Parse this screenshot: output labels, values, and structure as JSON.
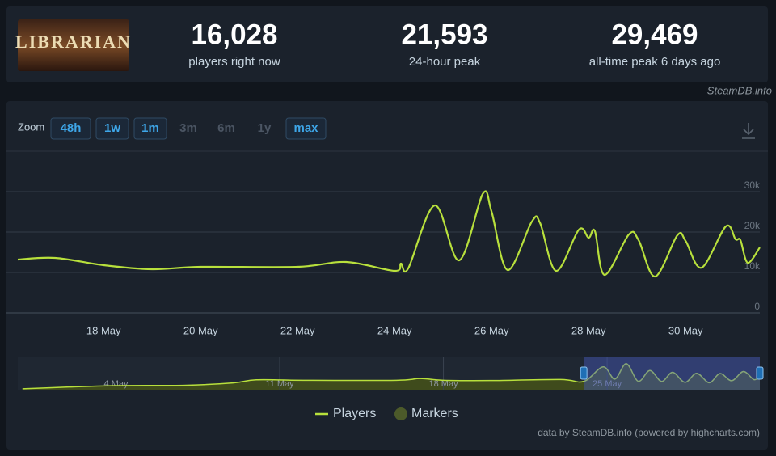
{
  "header": {
    "logo_text": "LIBRARIAN",
    "stats": [
      {
        "value": "16,028",
        "label": "players right now"
      },
      {
        "value": "21,593",
        "label": "24-hour peak"
      },
      {
        "value": "29,469",
        "label": "all-time peak 6 days ago"
      }
    ],
    "source": "SteamDB.info"
  },
  "zoom": {
    "label": "Zoom",
    "buttons": [
      {
        "label": "48h",
        "enabled": true
      },
      {
        "label": "1w",
        "enabled": true
      },
      {
        "label": "1m",
        "enabled": true
      },
      {
        "label": "3m",
        "enabled": false
      },
      {
        "label": "6m",
        "enabled": false
      },
      {
        "label": "1y",
        "enabled": false
      },
      {
        "label": "max",
        "enabled": true
      }
    ]
  },
  "chart_data": [
    {
      "type": "line",
      "x": [
        16.23,
        17.0,
        18.0,
        19.0,
        20.0,
        22.0,
        23.0,
        24.0,
        24.13,
        24.28,
        24.83,
        25.33,
        25.82,
        26.0,
        26.33,
        26.83,
        27.0,
        27.33,
        27.8,
        28.0,
        28.13,
        28.33,
        28.83,
        29.03,
        29.37,
        29.83,
        30.0,
        30.33,
        30.83,
        31.03,
        31.13,
        31.28,
        31.53
      ],
      "series": [
        {
          "name": "Players",
          "color": "#b8e03c",
          "values": [
            13200,
            13600,
            11800,
            10800,
            11400,
            11400,
            12600,
            10400,
            12200,
            11000,
            26600,
            13000,
            29500,
            25000,
            10600,
            22600,
            22200,
            10400,
            20600,
            18600,
            20200,
            9400,
            19400,
            18000,
            9000,
            19200,
            17800,
            11200,
            21400,
            18200,
            18000,
            12400,
            16200
          ]
        }
      ],
      "markers": {
        "name": "Markers",
        "color": "#4c5a2a"
      },
      "xlim": [
        16.23,
        31.53
      ],
      "xticks": [
        {
          "value": 18,
          "label": "18 May"
        },
        {
          "value": 20,
          "label": "20 May"
        },
        {
          "value": 22,
          "label": "22 May"
        },
        {
          "value": 24,
          "label": "24 May"
        },
        {
          "value": 26,
          "label": "26 May"
        },
        {
          "value": 28,
          "label": "28 May"
        },
        {
          "value": 30,
          "label": "30 May"
        }
      ],
      "ylim": [
        0,
        40000
      ],
      "yticks": [
        0,
        {
          "value": 10000,
          "label": "10k"
        },
        {
          "value": 20000,
          "label": "20k"
        },
        {
          "value": 30000,
          "label": "30k"
        }
      ],
      "grid": true
    },
    {
      "type": "navigator",
      "x": [
        0.0,
        2.0,
        4.0,
        7.0,
        9.0,
        10.0,
        12.0,
        16.0,
        17.0,
        18.0,
        20.0,
        23.0,
        24.0,
        24.83,
        25.33,
        25.82,
        26.33,
        26.83,
        27.33,
        27.8,
        28.33,
        28.83,
        29.37,
        29.83,
        30.33,
        30.83,
        31.28,
        31.53
      ],
      "values": [
        1000,
        3000,
        4500,
        5000,
        7500,
        11000,
        10500,
        10500,
        12500,
        10500,
        10200,
        11400,
        9200,
        25400,
        11800,
        29000,
        9400,
        21400,
        9200,
        19400,
        8200,
        18200,
        7800,
        18000,
        10000,
        20200,
        11200,
        15000
      ],
      "color": "#b8e03c",
      "area_color": "#3f4b1c",
      "xlim": [
        -0.2,
        31.53
      ],
      "xticks": [
        {
          "value": 4,
          "label": "4 May"
        },
        {
          "value": 11,
          "label": "11 May"
        },
        {
          "value": 18,
          "label": "18 May"
        },
        {
          "value": 25,
          "label": "25 May"
        }
      ],
      "ylim": [
        0,
        36000
      ],
      "selected_range": [
        24.0,
        31.53
      ]
    }
  ],
  "footer": "data by SteamDB.info (powered by highcharts.com)"
}
